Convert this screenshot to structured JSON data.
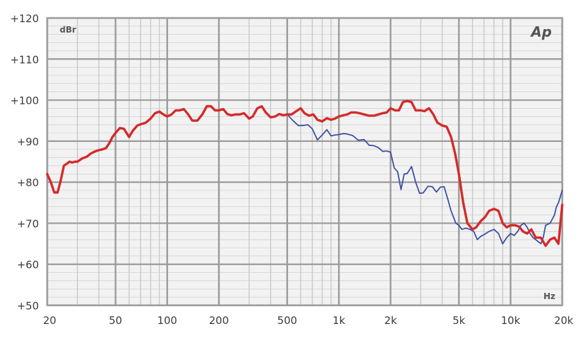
{
  "chart_data": {
    "type": "line",
    "title": "",
    "xlabel": "Hz",
    "ylabel": "dBr",
    "x_scale": "log",
    "xlim": [
      20,
      20000
    ],
    "ylim": [
      50,
      120
    ],
    "grid": true,
    "logo": "Ap",
    "x_ticks": [
      {
        "value": 20,
        "label": "20"
      },
      {
        "value": 50,
        "label": "50"
      },
      {
        "value": 100,
        "label": "100"
      },
      {
        "value": 200,
        "label": "200"
      },
      {
        "value": 500,
        "label": "500"
      },
      {
        "value": 1000,
        "label": "1k"
      },
      {
        "value": 2000,
        "label": "2k"
      },
      {
        "value": 5000,
        "label": "5k"
      },
      {
        "value": 10000,
        "label": "10k"
      },
      {
        "value": 20000,
        "label": "20k"
      }
    ],
    "y_ticks": [
      {
        "value": 120,
        "label": "+120"
      },
      {
        "value": 110,
        "label": "+110"
      },
      {
        "value": 100,
        "label": "+100"
      },
      {
        "value": 90,
        "label": "+90"
      },
      {
        "value": 80,
        "label": "+80"
      },
      {
        "value": 70,
        "label": "+70"
      },
      {
        "value": 60,
        "label": "+60"
      },
      {
        "value": 50,
        "label": "+50"
      }
    ],
    "colors": {
      "series_red": "#d42a2a",
      "series_blue": "#3b4fa3",
      "grid_major": "#9a9a9a",
      "grid_minor": "#c8c8c8",
      "background": "#f2f2f2"
    },
    "series": [
      {
        "color": "#3b4fa3",
        "x": [
          500,
          540,
          580,
          620,
          660,
          700,
          750,
          800,
          850,
          900,
          950,
          1000,
          1050,
          1100,
          1200,
          1300,
          1400,
          1500,
          1600,
          1700,
          1800,
          1900,
          2000,
          2100,
          2200,
          2300,
          2400,
          2500,
          2650,
          2800,
          2950,
          3100,
          3300,
          3500,
          3700,
          3900,
          4100,
          4300,
          4500,
          4800,
          5000,
          5200,
          5500,
          5800,
          6100,
          6400,
          6700,
          7000,
          7500,
          8000,
          8500,
          9000,
          9500,
          10000,
          10500,
          11000,
          11500,
          12000,
          12500,
          13000,
          13500,
          14000,
          15000,
          15500,
          16000,
          17000,
          17500,
          18000,
          18500,
          19000,
          20000
        ],
        "y": [
          96.5,
          95.0,
          93.8,
          93.8,
          94.0,
          93.0,
          90.3,
          91.5,
          92.8,
          91.3,
          91.5,
          91.6,
          91.8,
          91.8,
          91.4,
          90.2,
          90.4,
          89.0,
          88.9,
          88.4,
          87.5,
          87.6,
          87.3,
          83.5,
          82.5,
          78.2,
          82.0,
          82.1,
          83.8,
          80.0,
          77.3,
          77.4,
          79.0,
          78.9,
          77.6,
          78.8,
          78.9,
          76.0,
          73.0,
          70.0,
          69.5,
          68.5,
          68.8,
          68.5,
          68.0,
          66.0,
          66.8,
          67.2,
          68.0,
          68.5,
          67.5,
          65.0,
          66.5,
          67.5,
          67.0,
          68.0,
          69.5,
          70.0,
          69.0,
          67.5,
          66.5,
          66.0,
          65.0,
          66.5,
          69.5,
          70.0,
          71.0,
          72.0,
          74.0,
          75.0,
          78.0
        ]
      },
      {
        "color": "#d42a2a",
        "x": [
          20,
          21,
          22,
          23,
          24,
          25,
          26,
          27,
          28,
          29,
          30,
          32,
          34,
          36,
          38,
          40,
          42,
          44,
          46,
          48,
          50,
          53,
          56,
          60,
          63,
          67,
          71,
          75,
          80,
          85,
          90,
          95,
          100,
          106,
          112,
          118,
          125,
          132,
          140,
          150,
          160,
          170,
          180,
          190,
          200,
          212,
          224,
          236,
          250,
          265,
          280,
          300,
          315,
          335,
          355,
          375,
          400,
          425,
          450,
          475,
          500,
          530,
          560,
          600,
          630,
          670,
          710,
          750,
          800,
          850,
          900,
          950,
          1000,
          1060,
          1120,
          1180,
          1250,
          1320,
          1400,
          1500,
          1600,
          1700,
          1800,
          1900,
          2000,
          2120,
          2240,
          2360,
          2500,
          2650,
          2800,
          3000,
          3150,
          3350,
          3550,
          3750,
          4000,
          4250,
          4500,
          4750,
          5000,
          5300,
          5600,
          6000,
          6300,
          6700,
          7100,
          7500,
          8000,
          8500,
          9000,
          9500,
          10000,
          10600,
          11200,
          11800,
          12500,
          13200,
          14000,
          15000,
          16000,
          17000,
          18000,
          19000,
          20000
        ],
        "y": [
          82.0,
          80.0,
          77.5,
          77.5,
          80.5,
          84.0,
          84.5,
          85.0,
          84.8,
          85.0,
          85.0,
          85.8,
          86.2,
          87.0,
          87.5,
          87.8,
          88.0,
          88.3,
          89.5,
          91.0,
          92.0,
          93.2,
          93.0,
          91.0,
          92.5,
          93.8,
          94.2,
          94.5,
          95.5,
          96.8,
          97.2,
          96.5,
          96.0,
          96.5,
          97.5,
          97.5,
          97.8,
          96.6,
          95.0,
          95.0,
          96.5,
          98.5,
          98.5,
          97.5,
          97.5,
          97.8,
          96.6,
          96.3,
          96.5,
          96.5,
          96.8,
          95.5,
          96.0,
          98.0,
          98.5,
          97.0,
          95.8,
          96.0,
          96.6,
          96.3,
          96.5,
          96.5,
          97.2,
          98.0,
          96.8,
          96.2,
          96.5,
          95.2,
          94.8,
          95.6,
          95.2,
          95.5,
          96.0,
          96.3,
          96.5,
          97.0,
          97.0,
          96.8,
          96.5,
          96.2,
          96.2,
          96.5,
          96.8,
          97.0,
          98.0,
          97.5,
          97.5,
          99.5,
          99.8,
          99.5,
          97.5,
          97.5,
          97.3,
          98.0,
          96.5,
          94.5,
          93.8,
          93.5,
          91.0,
          87.0,
          82.0,
          75.0,
          70.0,
          68.5,
          69.0,
          70.5,
          71.5,
          73.0,
          73.5,
          73.0,
          70.0,
          69.0,
          69.5,
          69.5,
          69.2,
          68.0,
          67.5,
          68.5,
          66.5,
          66.5,
          64.5,
          66.0,
          66.5,
          65.0,
          74.5
        ]
      }
    ]
  }
}
